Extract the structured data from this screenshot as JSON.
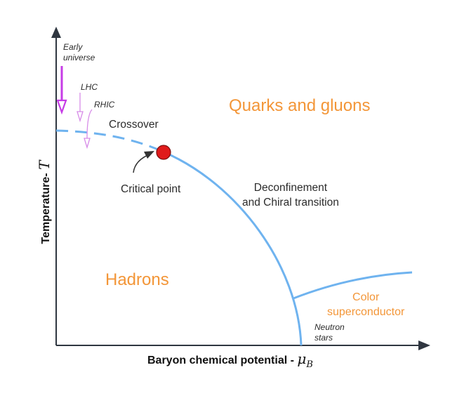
{
  "colors": {
    "axis": "#2f3640",
    "curve": "#6fb3ef",
    "region_text": "#f39638",
    "critical_point": "#e01b1b",
    "arrow_early": "#c63ce6",
    "arrow_colliders": "#d78ce8"
  },
  "regions": {
    "quarks": "Quarks and gluons",
    "hadrons": "Hadrons",
    "color_sc_line1": "Color",
    "color_sc_line2": "superconductor"
  },
  "labels": {
    "crossover": "Crossover",
    "critical_point": "Critical point",
    "deconf_line1": "Deconfinement",
    "deconf_line2": "and Chiral transition",
    "early_line1": "Early",
    "early_line2": "universe",
    "lhc": "LHC",
    "rhic": "RHIC",
    "neutron_line1": "Neutron",
    "neutron_line2": "stars"
  },
  "axes": {
    "y_title": "Temperature-",
    "y_symbol": "T",
    "x_title": "Baryon chemical potential -",
    "x_symbol": "μ",
    "x_symbol_sub": "B"
  },
  "icons": {
    "critical_point": "filled-circle",
    "early_universe_arrow": "hollow-arrow-down",
    "lhc_arrow": "hollow-arrow-down",
    "rhic_arrow": "hollow-arrow-down",
    "axes_arrows": "filled-triangle"
  }
}
